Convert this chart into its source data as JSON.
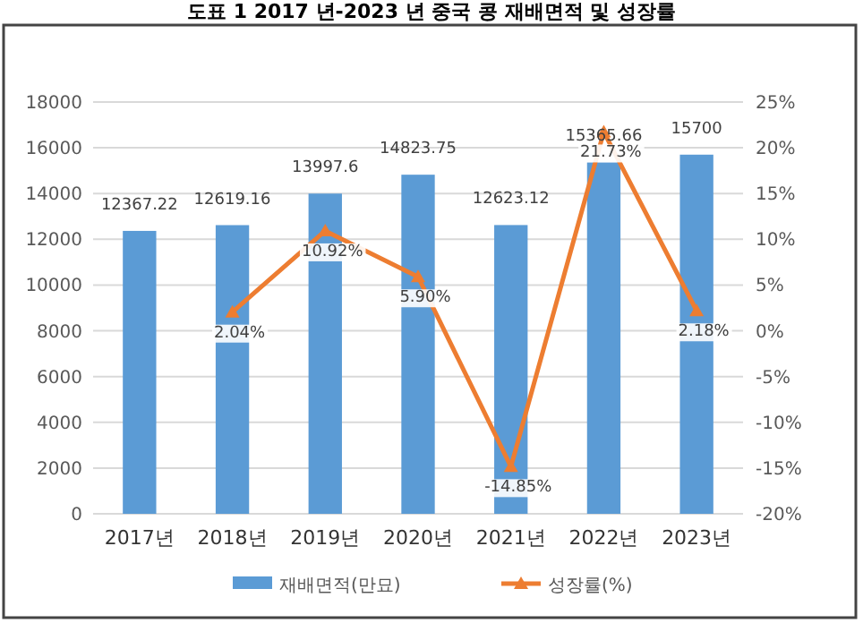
{
  "chart_data": {
    "type": "bar",
    "title": "도표 1 2017 년-2023 년 중국 콩 재배면적 및 성장률",
    "categories": [
      "2017년",
      "2018년",
      "2019년",
      "2020년",
      "2021년",
      "2022년",
      "2023년"
    ],
    "series": [
      {
        "name": "재배면적(만묘)",
        "color": "#5b9bd5",
        "values": [
          12367.22,
          12619.16,
          13997.6,
          14823.75,
          12623.12,
          15365.66,
          15700
        ],
        "value_labels": [
          "12367.22",
          "12619.16",
          "13997.6",
          "14823.75",
          "12623.12",
          "15365.66",
          "15700"
        ]
      },
      {
        "name": "성장률(%)",
        "type": "line",
        "axis": "y2",
        "color": "#ed7d31",
        "marker": "triangle",
        "values": [
          null,
          2.04,
          10.92,
          5.9,
          -14.85,
          21.73,
          2.18
        ],
        "value_labels": [
          null,
          "2.04%",
          "10.92%",
          "5.90%",
          "-14.85%",
          "21.73%",
          "2.18%"
        ]
      }
    ],
    "ylim": [
      0,
      18000
    ],
    "yticks": [
      0,
      2000,
      4000,
      6000,
      8000,
      10000,
      12000,
      14000,
      16000,
      18000
    ],
    "y2lim": [
      -20,
      25
    ],
    "y2ticks": [
      {
        "value": -20,
        "label": "-20%"
      },
      {
        "value": -15,
        "label": "-15%"
      },
      {
        "value": -10,
        "label": "-10%"
      },
      {
        "value": -5,
        "label": "-5%"
      },
      {
        "value": 0,
        "label": "0%"
      },
      {
        "value": 5,
        "label": "5%"
      },
      {
        "value": 10,
        "label": "10%"
      },
      {
        "value": 15,
        "label": "15%"
      },
      {
        "value": 20,
        "label": "20%"
      },
      {
        "value": 25,
        "label": "25%"
      }
    ],
    "grid": "y",
    "legend": "bottom"
  }
}
